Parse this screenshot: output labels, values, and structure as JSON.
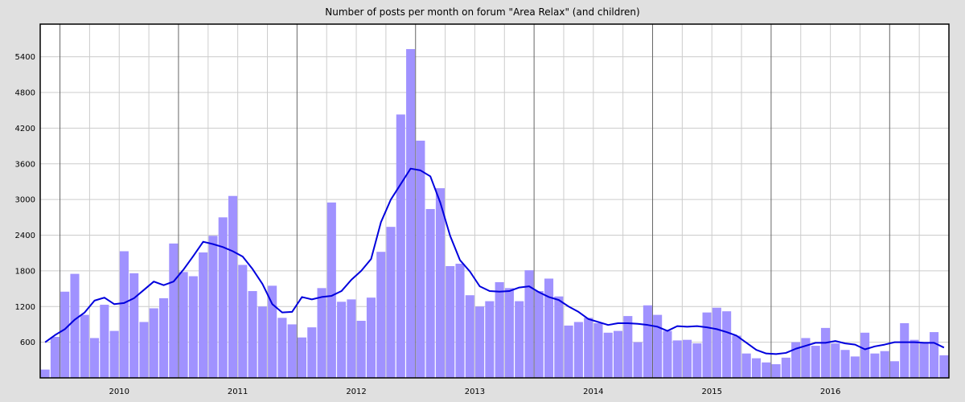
{
  "chart_data": {
    "type": "bar",
    "title": "Number of posts per month on forum \"Area Relax\" (and children)",
    "xlabel": "",
    "ylabel": "",
    "ylim": [
      0,
      5950
    ],
    "yticks": [
      600,
      1200,
      1800,
      2400,
      3000,
      3600,
      4200,
      4800,
      5400
    ],
    "year_labels": [
      "2010",
      "2011",
      "2012",
      "2013",
      "2014",
      "2015",
      "2016"
    ],
    "x_start": "2009-05",
    "grid": true,
    "colors": {
      "bars": "#a092ff",
      "trend": "#0000dd"
    },
    "series": [
      {
        "type": "bar",
        "values": [
          140,
          690,
          1450,
          1750,
          1060,
          670,
          1230,
          790,
          2130,
          1760,
          940,
          1170,
          1340,
          2260,
          1780,
          1710,
          2110,
          2390,
          2700,
          3060,
          1900,
          1460,
          1200,
          1550,
          1010,
          900,
          680,
          850,
          1510,
          2950,
          1280,
          1320,
          960,
          1350,
          2120,
          2540,
          4430,
          5530,
          3990,
          2840,
          3190,
          1880,
          1920,
          1390,
          1200,
          1290,
          1610,
          1510,
          1290,
          1810,
          1460,
          1670,
          1370,
          880,
          940,
          1010,
          920,
          760,
          790,
          1040,
          600,
          1220,
          1060,
          790,
          630,
          640,
          580,
          1100,
          1180,
          1120,
          710,
          410,
          330,
          260,
          230,
          340,
          600,
          670,
          540,
          840,
          580,
          470,
          360,
          760,
          410,
          450,
          280,
          920,
          640,
          600,
          770,
          380
        ]
      },
      {
        "type": "line",
        "values": [
          600,
          720,
          820,
          980,
          1100,
          1300,
          1350,
          1240,
          1260,
          1340,
          1480,
          1620,
          1560,
          1620,
          1820,
          2050,
          2290,
          2250,
          2200,
          2130,
          2040,
          1830,
          1580,
          1240,
          1100,
          1110,
          1360,
          1320,
          1360,
          1380,
          1460,
          1650,
          1800,
          2000,
          2620,
          3000,
          3260,
          3520,
          3490,
          3390,
          2950,
          2390,
          1980,
          1790,
          1540,
          1460,
          1450,
          1460,
          1520,
          1540,
          1440,
          1360,
          1310,
          1200,
          1110,
          990,
          940,
          890,
          920,
          920,
          910,
          890,
          860,
          790,
          870,
          860,
          870,
          850,
          820,
          770,
          710,
          590,
          470,
          410,
          400,
          420,
          490,
          540,
          590,
          590,
          620,
          580,
          560,
          480,
          530,
          560,
          600,
          600,
          600,
          590,
          590,
          510
        ]
      }
    ]
  }
}
